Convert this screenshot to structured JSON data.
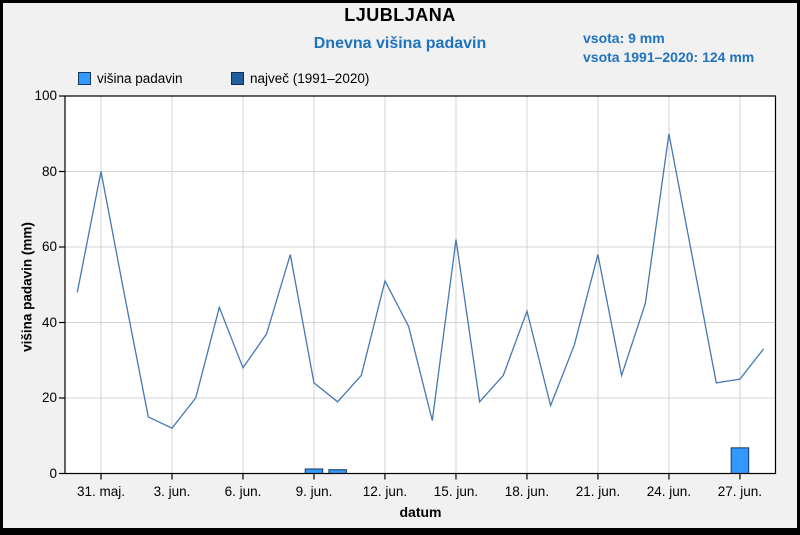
{
  "header": {
    "title": "LJUBLJANA",
    "subtitle": "Dnevna višina padavin",
    "total_current": "vsota: 9 mm",
    "total_climate": "vsota 1991–2020: 124 mm"
  },
  "legend": {
    "items": [
      {
        "label": "višina padavin",
        "fill": "#3399ff",
        "border": "#17375d"
      },
      {
        "label": "največ (1991–2020)",
        "fill": "#1f5fa0",
        "border": "#0f2f52"
      }
    ]
  },
  "axes": {
    "y_title": "višina padavin (mm)",
    "x_title": "datum"
  },
  "chart_data": {
    "type": "bar+line",
    "title": "LJUBLJANA",
    "subtitle": "Dnevna višina padavin",
    "xlabel": "datum",
    "ylabel": "višina padavin (mm)",
    "ylim": [
      0,
      100
    ],
    "grid": true,
    "legend_position": "top-left",
    "x": [
      "30. maj",
      "31. maj",
      "1. jun",
      "2. jun",
      "3. jun",
      "4. jun",
      "5. jun",
      "6. jun",
      "7. jun",
      "8. jun",
      "9. jun",
      "10. jun",
      "11. jun",
      "12. jun",
      "13. jun",
      "14. jun",
      "15. jun",
      "16. jun",
      "17. jun",
      "18. jun",
      "19. jun",
      "20. jun",
      "21. jun",
      "22. jun",
      "23. jun",
      "24. jun",
      "25. jun",
      "26. jun",
      "27. jun",
      "28. jun"
    ],
    "series": [
      {
        "name": "višina padavin",
        "kind": "bar",
        "color": "#3399ff",
        "border_color": "#17375d",
        "values": [
          null,
          null,
          null,
          null,
          null,
          null,
          null,
          null,
          null,
          null,
          1.2,
          1,
          null,
          null,
          null,
          null,
          null,
          null,
          null,
          null,
          null,
          null,
          null,
          null,
          null,
          null,
          null,
          null,
          6.8,
          null
        ]
      },
      {
        "name": "največ (1991–2020)",
        "kind": "line",
        "color": "#4678b2",
        "values": [
          48,
          80,
          47,
          15,
          12,
          20,
          44,
          28,
          37,
          58,
          24,
          19,
          26,
          51,
          39,
          14,
          62,
          19,
          26,
          43,
          18,
          34,
          58,
          26,
          45,
          90,
          57,
          24,
          25,
          33
        ]
      }
    ],
    "x_tick_indices": [
      1,
      4,
      7,
      10,
      13,
      16,
      19,
      22,
      25,
      28
    ],
    "x_tick_labels": [
      "31. maj.",
      "3. jun.",
      "6. jun.",
      "9. jun.",
      "12. jun.",
      "15. jun.",
      "18. jun.",
      "21. jun.",
      "24. jun.",
      "27. jun."
    ],
    "y_ticks": [
      0,
      20,
      40,
      60,
      80,
      100
    ],
    "colors": {
      "grid": "#d4d4d4",
      "plot_bg": "#ffffff",
      "frame_bg": "#f1f1f1",
      "axis": "#000000",
      "accent_blue": "#1e73be"
    }
  }
}
